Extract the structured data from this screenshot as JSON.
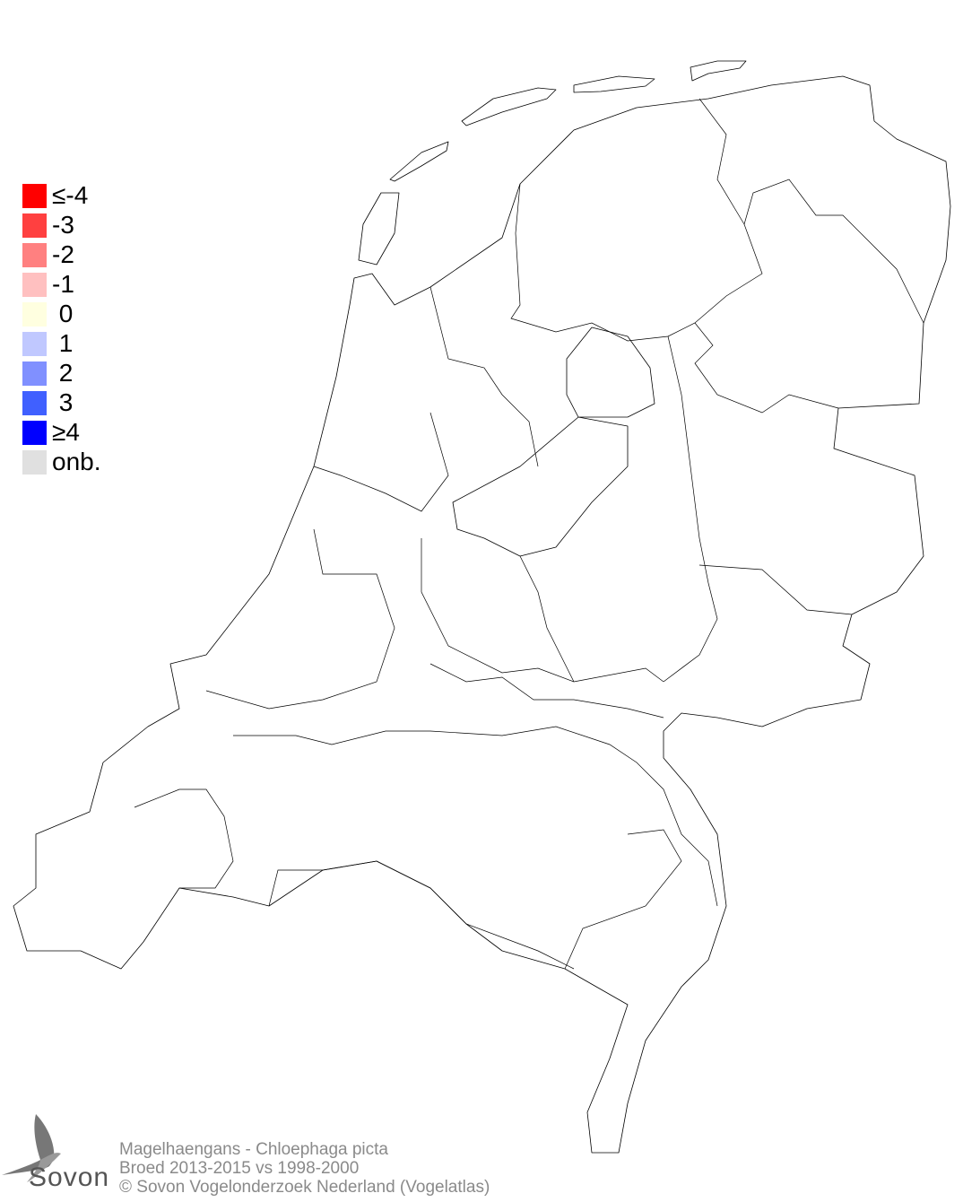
{
  "legend": {
    "items": [
      {
        "label": "≤-4",
        "color": "#ff0000"
      },
      {
        "label": "-3",
        "color": "#ff4040"
      },
      {
        "label": "-2",
        "color": "#ff8080"
      },
      {
        "label": "-1",
        "color": "#ffc0c0"
      },
      {
        "label": " 0",
        "color": "#ffffe0"
      },
      {
        "label": " 1",
        "color": "#c0c8ff"
      },
      {
        "label": " 2",
        "color": "#8090ff"
      },
      {
        "label": " 3",
        "color": "#4060ff"
      },
      {
        "label": "≥4",
        "color": "#0000ff"
      },
      {
        "label": "onb.",
        "color": "#e0e0e0"
      }
    ]
  },
  "footer": {
    "species": "Magelhaengans - Chloephaga picta",
    "period": "Broed 2013-2015 vs 1998-2000",
    "copyright": "© Sovon Vogelonderzoek Nederland (Vogelatlas)"
  },
  "logo": {
    "text": "Sovon"
  }
}
